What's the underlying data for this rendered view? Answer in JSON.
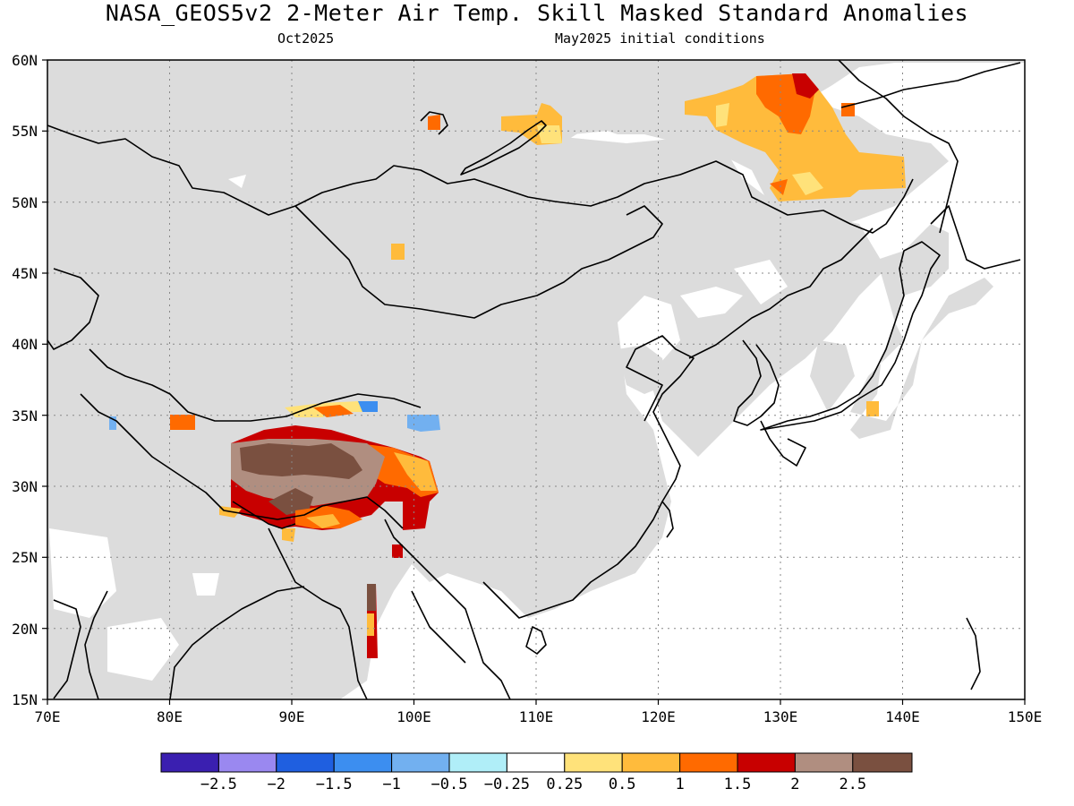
{
  "header": {
    "title": "NASA_GEOS5v2 2-Meter Air Temp. Skill Masked Standard Anomalies",
    "target_month": "Oct2025",
    "init": "May2025 initial conditions"
  },
  "map": {
    "lon_labels": [
      "70E",
      "80E",
      "90E",
      "100E",
      "110E",
      "120E",
      "130E",
      "140E",
      "150E"
    ],
    "lat_labels": [
      "60N",
      "55N",
      "50N",
      "45N",
      "40N",
      "35N",
      "30N",
      "25N",
      "20N",
      "15N"
    ],
    "lon_range": [
      70,
      150
    ],
    "lat_range": [
      15,
      60
    ],
    "mask_color": "#dcdcdc",
    "coastline_color": "#000000",
    "grid_color": "#888888"
  },
  "colorbar": {
    "colors": [
      "#3a1fb0",
      "#9a88f0",
      "#1f5fe0",
      "#3c8ef0",
      "#72b0f0",
      "#b0eef8",
      "#ffffff",
      "#ffe27a",
      "#ffbb3c",
      "#ff6a00",
      "#c80000",
      "#b08e80",
      "#7a5040"
    ],
    "labels": [
      "−2.5",
      "−2",
      "−1.5",
      "−1",
      "−0.5",
      "−0.25",
      "0.25",
      "0.5",
      "1",
      "1.5",
      "2",
      "2.5"
    ]
  }
}
